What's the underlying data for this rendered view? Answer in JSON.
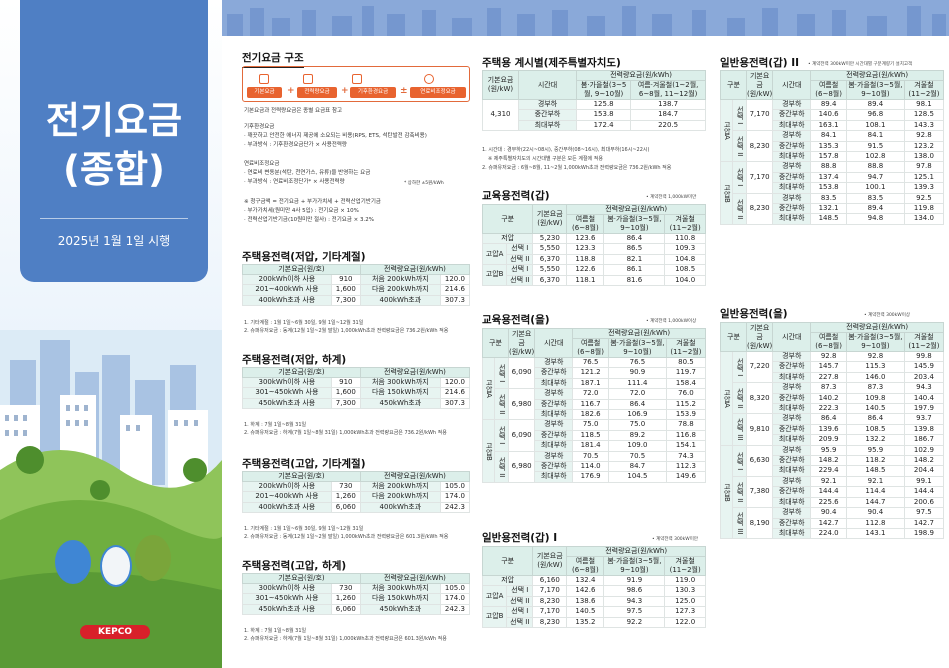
{
  "cover": {
    "title": "전기요금\n(종합)",
    "date": "2025년 1월 1일 시행",
    "logo": "KEPCO"
  },
  "structure": {
    "title": "전기요금 구조",
    "items": [
      "기본요금",
      "전력량요금",
      "기후환경요금",
      "연료비조정요금"
    ],
    "ops": [
      "+",
      "+",
      "±"
    ],
    "lines": [
      "기본요금과 전력량요금은 종별 요금표 참고",
      "기후환경요금",
      "· 깨끗하고 안전한 에너지 제공에 소요되는 비용(RPS, ETS, 석탄발전 감축비용)",
      "· 부과방식 : 기후환경요금단가 × 사용전력량",
      "연료비조정요금",
      "· 연료비 변동분(석탄, 천연가스, 유류)을 반영하는 요금",
      "· 부과방식 : 연료비조정단가* × 사용전력량",
      "* 상하한 ±5원/kWh",
      "※ 청구금액 = 전기요금 + 부가가치세 + 전력산업기반기금",
      "· 부가가치세(원미만 4사 5입) : 전기요금 × 10%",
      "· 전력산업기반기금(10원미만 절사) : 전기요금 × 3.2%"
    ]
  },
  "res_low_other": {
    "title": "주택용전력(저압, 기타계절)",
    "headers": [
      "기본요금(원/호)",
      "전력량요금(원/kWh)"
    ],
    "rows": [
      [
        "200kWh이하 사용",
        "910",
        "처음 200kWh까지",
        "120.0"
      ],
      [
        "201~400kWh 사용",
        "1,600",
        "다음 200kWh까지",
        "214.6"
      ],
      [
        "400kWh초과 사용",
        "7,300",
        "400kWh초과",
        "307.3"
      ]
    ],
    "notes": [
      "1. 기타계절 : 1월 1일~6월 30일, 9월 1일~12월 31일",
      "2. 슈퍼유저요금 : 동계(12월 1일~2월 말일) 1,000kWh초과 전력량요금은 736.2원/kWh 적용"
    ]
  },
  "res_low_summer": {
    "title": "주택용전력(저압, 하계)",
    "headers": [
      "기본요금(원/호)",
      "전력량요금(원/kWh)"
    ],
    "rows": [
      [
        "300kWh이하 사용",
        "910",
        "처음 300kWh까지",
        "120.0"
      ],
      [
        "301~450kWh 사용",
        "1,600",
        "다음 150kWh까지",
        "214.6"
      ],
      [
        "450kWh초과 사용",
        "7,300",
        "450kWh초과",
        "307.3"
      ]
    ],
    "notes": [
      "1. 하계 : 7월 1일~8월 31일",
      "2. 슈퍼유저요금 : 하계(7월 1일~8월 31일) 1,000kWh초과 전력량요금은 736.2원/kWh 적용"
    ]
  },
  "res_high_other": {
    "title": "주택용전력(고압, 기타계절)",
    "headers": [
      "기본요금(원/호)",
      "전력량요금(원/kWh)"
    ],
    "rows": [
      [
        "200kWh이하 사용",
        "730",
        "처음 200kWh까지",
        "105.0"
      ],
      [
        "201~400kWh 사용",
        "1,260",
        "다음 200kWh까지",
        "174.0"
      ],
      [
        "400kWh초과 사용",
        "6,060",
        "400kWh초과",
        "242.3"
      ]
    ],
    "notes": [
      "1. 기타계절 : 1월 1일~6월 30일, 9월 1일~12월 31일",
      "2. 슈퍼유저요금 : 동계(12월 1일~2월 말일) 1,000kWh초과 전력량요금은 601.3원/kWh 적용"
    ]
  },
  "res_high_summer": {
    "title": "주택용전력(고압, 하계)",
    "headers": [
      "기본요금(원/호)",
      "전력량요금(원/kWh)"
    ],
    "rows": [
      [
        "300kWh이하 사용",
        "730",
        "처음 300kWh까지",
        "105.0"
      ],
      [
        "301~450kWh 사용",
        "1,260",
        "다음 150kWh까지",
        "174.0"
      ],
      [
        "450kWh초과 사용",
        "6,060",
        "450kWh초과",
        "242.3"
      ]
    ],
    "notes": [
      "1. 하계 : 7월 1일~8월 31일",
      "2. 슈퍼유저요금 : 하계(7월 1일~8월 31일) 1,000kWh초과 전력량요금은 601.3원/kWh 적용"
    ]
  },
  "res_tou": {
    "title": "주택용 계시별(제주특별자치도)",
    "headers": [
      "기본요금(원/kW)",
      "시간대",
      "봄·가을철(3~5월, 9~10월)",
      "여름·겨울철(1~2월, 6~8월, 11~12월)"
    ],
    "group": "전력량요금(원/kWh)",
    "basic": "4,310",
    "rows": [
      [
        "경부하",
        "125.8",
        "138.7"
      ],
      [
        "중간부하",
        "153.8",
        "184.7"
      ],
      [
        "최대부하",
        "172.4",
        "220.5"
      ]
    ],
    "notes": [
      "1. 시간대 : 경부하(22시~08시), 중간부하(08~16시), 최대부하(16시~22시)",
      "※ 제주특별자치도의 시간대별 구분은 모든 계절에 적용",
      "2. 슈퍼유저요금 : 6월~8월, 11~2월 1,000kWh초과 전력량요금은 736.2원/kWh 적용"
    ]
  },
  "edu_a": {
    "title": "교육용전력(갑)",
    "unit": "• 계약전력 1,000kW미만",
    "headers": [
      "구분",
      "기본요금(원/kW)",
      "여름철(6~8월)",
      "봄·가을철(3~5월, 9~10월)",
      "겨울철(11~2월)"
    ],
    "group": "전력량요금(원/kWh)",
    "rows": [
      [
        "저압",
        "",
        "5,230",
        "123.6",
        "86.4",
        "110.8"
      ],
      [
        "고압A",
        "선택 I",
        "5,550",
        "123.3",
        "86.5",
        "109.3"
      ],
      [
        "",
        "선택 II",
        "6,370",
        "118.8",
        "82.1",
        "104.8"
      ],
      [
        "고압B",
        "선택 I",
        "5,550",
        "122.6",
        "86.1",
        "108.5"
      ],
      [
        "",
        "선택 II",
        "6,370",
        "118.1",
        "81.6",
        "104.0"
      ]
    ]
  },
  "edu_b": {
    "title": "교육용전력(을)",
    "unit": "• 계약전력 1,000kW이상",
    "headers": [
      "구분",
      "기본요금(원/kW)",
      "시간대",
      "여름철(6~8월)",
      "봄·가을철(3~5월, 9~10월)",
      "겨울철(11~2월)"
    ],
    "group": "전력량요금(원/kWh)",
    "blocks": [
      {
        "grp": "고압A",
        "opt": "선택 I",
        "basic": "6,090",
        "rows": [
          [
            "경부하",
            "76.5",
            "76.5",
            "80.5"
          ],
          [
            "중간부하",
            "121.2",
            "90.9",
            "119.7"
          ],
          [
            "최대부하",
            "187.1",
            "111.4",
            "158.4"
          ]
        ]
      },
      {
        "grp": "",
        "opt": "선택 II",
        "basic": "6,980",
        "rows": [
          [
            "경부하",
            "72.0",
            "72.0",
            "76.0"
          ],
          [
            "중간부하",
            "116.7",
            "86.4",
            "115.2"
          ],
          [
            "최대부하",
            "182.6",
            "106.9",
            "153.9"
          ]
        ]
      },
      {
        "grp": "고압B",
        "opt": "선택 I",
        "basic": "6,090",
        "rows": [
          [
            "경부하",
            "75.0",
            "75.0",
            "78.8"
          ],
          [
            "중간부하",
            "118.5",
            "89.2",
            "116.8"
          ],
          [
            "최대부하",
            "181.4",
            "109.0",
            "154.1"
          ]
        ]
      },
      {
        "grp": "",
        "opt": "선택 II",
        "basic": "6,980",
        "rows": [
          [
            "경부하",
            "70.5",
            "70.5",
            "74.3"
          ],
          [
            "중간부하",
            "114.0",
            "84.7",
            "112.3"
          ],
          [
            "최대부하",
            "176.9",
            "104.5",
            "149.6"
          ]
        ]
      }
    ]
  },
  "gen_a1": {
    "title": "일반용전력(갑) I",
    "unit": "• 계약전력 300kW미만",
    "headers": [
      "구분",
      "기본요금(원/kW)",
      "여름철(6~8월)",
      "봄·가을철(3~5월, 9~10월)",
      "겨울철(11~2월)"
    ],
    "group": "전력량요금(원/kWh)",
    "rows": [
      [
        "저압",
        "",
        "6,160",
        "132.4",
        "91.9",
        "119.0"
      ],
      [
        "고압A",
        "선택 I",
        "7,170",
        "142.6",
        "98.6",
        "130.3"
      ],
      [
        "",
        "선택 II",
        "8,230",
        "138.6",
        "94.3",
        "125.0"
      ],
      [
        "고압B",
        "선택 I",
        "7,170",
        "140.5",
        "97.5",
        "127.3"
      ],
      [
        "",
        "선택 II",
        "8,230",
        "135.2",
        "92.2",
        "122.0"
      ]
    ]
  },
  "gen_a2": {
    "title": "일반용전력(갑) II",
    "unit": "• 계약전력 300kW미만 시간대별 구분계량기 설치고객",
    "headers": [
      "구분",
      "기본요금(원/kW)",
      "시간대",
      "여름철(6~8월)",
      "봄·가을철(3~5월, 9~10월)",
      "겨울철(11~2월)"
    ],
    "group": "전력량요금(원/kWh)",
    "blocks": [
      {
        "grp": "고압A",
        "opt": "선택 I",
        "basic": "7,170",
        "rows": [
          [
            "경부하",
            "89.4",
            "89.4",
            "98.1"
          ],
          [
            "중간부하",
            "140.6",
            "96.8",
            "128.5"
          ],
          [
            "최대부하",
            "163.1",
            "108.1",
            "143.3"
          ]
        ]
      },
      {
        "grp": "",
        "opt": "선택 II",
        "basic": "8,230",
        "rows": [
          [
            "경부하",
            "84.1",
            "84.1",
            "92.8"
          ],
          [
            "중간부하",
            "135.3",
            "91.5",
            "123.2"
          ],
          [
            "최대부하",
            "157.8",
            "102.8",
            "138.0"
          ]
        ]
      },
      {
        "grp": "고압B",
        "opt": "선택 I",
        "basic": "7,170",
        "rows": [
          [
            "경부하",
            "88.8",
            "88.8",
            "97.8"
          ],
          [
            "중간부하",
            "137.4",
            "94.7",
            "125.1"
          ],
          [
            "최대부하",
            "153.8",
            "100.1",
            "139.3"
          ]
        ]
      },
      {
        "grp": "",
        "opt": "선택 II",
        "basic": "8,230",
        "rows": [
          [
            "경부하",
            "83.5",
            "83.5",
            "92.5"
          ],
          [
            "중간부하",
            "132.1",
            "89.4",
            "119.8"
          ],
          [
            "최대부하",
            "148.5",
            "94.8",
            "134.0"
          ]
        ]
      }
    ]
  },
  "gen_b": {
    "title": "일반용전력(을)",
    "unit": "• 계약전력 300kW이상",
    "headers": [
      "구분",
      "기본요금(원/kW)",
      "시간대",
      "여름철(6~8월)",
      "봄·가을철(3~5월, 9~10월)",
      "겨울철(11~2월)"
    ],
    "group": "전력량요금(원/kWh)",
    "blocks": [
      {
        "grp": "고압A",
        "opt": "선택 I",
        "basic": "7,220",
        "rows": [
          [
            "경부하",
            "92.8",
            "92.8",
            "99.8"
          ],
          [
            "중간부하",
            "145.7",
            "115.3",
            "145.9"
          ],
          [
            "최대부하",
            "227.8",
            "146.0",
            "203.4"
          ]
        ]
      },
      {
        "grp": "",
        "opt": "선택 II",
        "basic": "8,320",
        "rows": [
          [
            "경부하",
            "87.3",
            "87.3",
            "94.3"
          ],
          [
            "중간부하",
            "140.2",
            "109.8",
            "140.4"
          ],
          [
            "최대부하",
            "222.3",
            "140.5",
            "197.9"
          ]
        ]
      },
      {
        "grp": "",
        "opt": "선택 III",
        "basic": "9,810",
        "rows": [
          [
            "경부하",
            "86.4",
            "86.4",
            "93.7"
          ],
          [
            "중간부하",
            "139.6",
            "108.5",
            "139.8"
          ],
          [
            "최대부하",
            "209.9",
            "132.2",
            "186.7"
          ]
        ]
      },
      {
        "grp": "고압B",
        "opt": "선택 I",
        "basic": "6,630",
        "rows": [
          [
            "경부하",
            "95.9",
            "95.9",
            "102.9"
          ],
          [
            "중간부하",
            "148.2",
            "118.2",
            "148.2"
          ],
          [
            "최대부하",
            "229.4",
            "148.5",
            "204.4"
          ]
        ]
      },
      {
        "grp": "",
        "opt": "선택 II",
        "basic": "7,380",
        "rows": [
          [
            "경부하",
            "92.1",
            "92.1",
            "99.1"
          ],
          [
            "중간부하",
            "144.4",
            "114.4",
            "144.4"
          ],
          [
            "최대부하",
            "225.6",
            "144.7",
            "200.6"
          ]
        ]
      },
      {
        "grp": "",
        "opt": "선택 III",
        "basic": "8,190",
        "rows": [
          [
            "경부하",
            "90.4",
            "90.4",
            "97.5"
          ],
          [
            "중간부하",
            "142.7",
            "112.8",
            "142.7"
          ],
          [
            "최대부하",
            "224.0",
            "143.1",
            "198.9"
          ]
        ]
      }
    ]
  }
}
